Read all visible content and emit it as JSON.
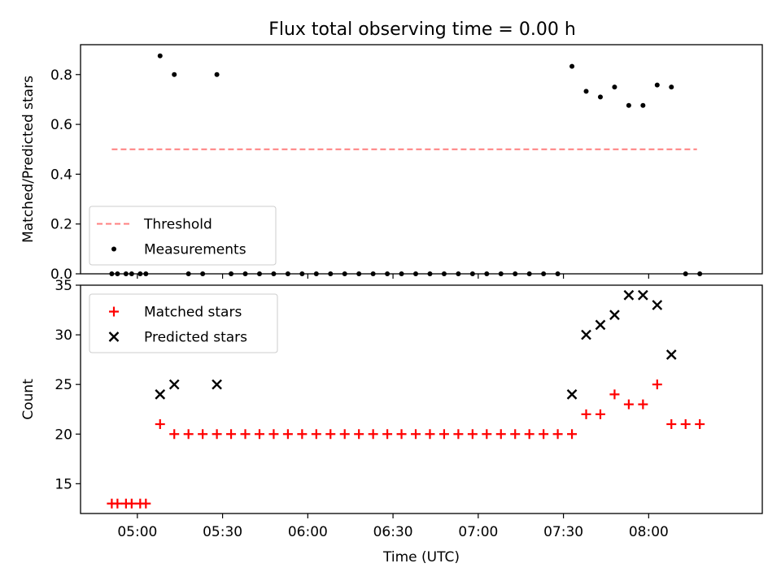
{
  "title": "Flux total observing time = 0.00 h",
  "chart_data": [
    {
      "type": "scatter",
      "ylabel": "Matched/Predicted stars",
      "xlabel": "",
      "ylim": [
        0.0,
        0.92
      ],
      "yticks": [
        0.0,
        0.2,
        0.4,
        0.6,
        0.8
      ],
      "ytick_labels": [
        "0.0",
        "0.2",
        "0.4",
        "0.6",
        "0.8"
      ],
      "xlim": [
        "04:40",
        "08:40"
      ],
      "xticks": [
        "05:00",
        "05:30",
        "06:00",
        "06:30",
        "07:00",
        "07:30",
        "08:00"
      ],
      "show_xtick_labels": false,
      "legend_location": "lower-left",
      "series": [
        {
          "name": "Threshold",
          "kind": "dashed-line",
          "color": "#ff7f7f",
          "points": [
            [
              "04:51",
              0.5
            ],
            [
              "08:17",
              0.5
            ]
          ]
        },
        {
          "name": "Measurements",
          "kind": "dot",
          "color": "#000000",
          "points": [
            [
              "04:51",
              0.0
            ],
            [
              "04:53",
              0.0
            ],
            [
              "04:56",
              0.0
            ],
            [
              "04:58",
              0.0
            ],
            [
              "05:01",
              0.0
            ],
            [
              "05:03",
              0.0
            ],
            [
              "05:08",
              0.875
            ],
            [
              "05:13",
              0.8
            ],
            [
              "05:18",
              0.0
            ],
            [
              "05:23",
              0.0
            ],
            [
              "05:28",
              0.8
            ],
            [
              "05:33",
              0.0
            ],
            [
              "05:38",
              0.0
            ],
            [
              "05:43",
              0.0
            ],
            [
              "05:48",
              0.0
            ],
            [
              "05:53",
              0.0
            ],
            [
              "05:58",
              0.0
            ],
            [
              "06:03",
              0.0
            ],
            [
              "06:08",
              0.0
            ],
            [
              "06:13",
              0.0
            ],
            [
              "06:18",
              0.0
            ],
            [
              "06:23",
              0.0
            ],
            [
              "06:28",
              0.0
            ],
            [
              "06:33",
              0.0
            ],
            [
              "06:38",
              0.0
            ],
            [
              "06:43",
              0.0
            ],
            [
              "06:48",
              0.0
            ],
            [
              "06:53",
              0.0
            ],
            [
              "06:58",
              0.0
            ],
            [
              "07:03",
              0.0
            ],
            [
              "07:08",
              0.0
            ],
            [
              "07:13",
              0.0
            ],
            [
              "07:18",
              0.0
            ],
            [
              "07:23",
              0.0
            ],
            [
              "07:28",
              0.0
            ],
            [
              "07:33",
              0.833
            ],
            [
              "07:38",
              0.733
            ],
            [
              "07:43",
              0.71
            ],
            [
              "07:48",
              0.75
            ],
            [
              "07:53",
              0.676
            ],
            [
              "07:58",
              0.676
            ],
            [
              "08:03",
              0.758
            ],
            [
              "08:08",
              0.75
            ],
            [
              "08:13",
              0.0
            ],
            [
              "08:18",
              0.0
            ]
          ]
        }
      ]
    },
    {
      "type": "scatter",
      "ylabel": "Count",
      "xlabel": "Time (UTC)",
      "ylim": [
        12,
        35
      ],
      "yticks": [
        15,
        20,
        25,
        30,
        35
      ],
      "ytick_labels": [
        "15",
        "20",
        "25",
        "30",
        "35"
      ],
      "xlim": [
        "04:40",
        "08:40"
      ],
      "xticks": [
        "05:00",
        "05:30",
        "06:00",
        "06:30",
        "07:00",
        "07:30",
        "08:00"
      ],
      "xtick_labels": [
        "05:00",
        "05:30",
        "06:00",
        "06:30",
        "07:00",
        "07:30",
        "08:00"
      ],
      "legend_location": "upper-left",
      "series": [
        {
          "name": "Matched stars",
          "kind": "plus",
          "color": "#ff0000",
          "points": [
            [
              "04:51",
              13
            ],
            [
              "04:53",
              13
            ],
            [
              "04:56",
              13
            ],
            [
              "04:58",
              13
            ],
            [
              "05:01",
              13
            ],
            [
              "05:03",
              13
            ],
            [
              "05:08",
              21
            ],
            [
              "05:13",
              20
            ],
            [
              "05:18",
              20
            ],
            [
              "05:23",
              20
            ],
            [
              "05:28",
              20
            ],
            [
              "05:33",
              20
            ],
            [
              "05:38",
              20
            ],
            [
              "05:43",
              20
            ],
            [
              "05:48",
              20
            ],
            [
              "05:53",
              20
            ],
            [
              "05:58",
              20
            ],
            [
              "06:03",
              20
            ],
            [
              "06:08",
              20
            ],
            [
              "06:13",
              20
            ],
            [
              "06:18",
              20
            ],
            [
              "06:23",
              20
            ],
            [
              "06:28",
              20
            ],
            [
              "06:33",
              20
            ],
            [
              "06:38",
              20
            ],
            [
              "06:43",
              20
            ],
            [
              "06:48",
              20
            ],
            [
              "06:53",
              20
            ],
            [
              "06:58",
              20
            ],
            [
              "07:03",
              20
            ],
            [
              "07:08",
              20
            ],
            [
              "07:13",
              20
            ],
            [
              "07:18",
              20
            ],
            [
              "07:23",
              20
            ],
            [
              "07:28",
              20
            ],
            [
              "07:33",
              20
            ],
            [
              "07:38",
              22
            ],
            [
              "07:43",
              22
            ],
            [
              "07:48",
              24
            ],
            [
              "07:53",
              23
            ],
            [
              "07:58",
              23
            ],
            [
              "08:03",
              25
            ],
            [
              "08:08",
              21
            ],
            [
              "08:13",
              21
            ],
            [
              "08:18",
              21
            ]
          ]
        },
        {
          "name": "Predicted stars",
          "kind": "x",
          "color": "#000000",
          "points": [
            [
              "05:08",
              24
            ],
            [
              "05:13",
              25
            ],
            [
              "05:28",
              25
            ],
            [
              "07:33",
              24
            ],
            [
              "07:38",
              30
            ],
            [
              "07:43",
              31
            ],
            [
              "07:48",
              32
            ],
            [
              "07:53",
              34
            ],
            [
              "07:58",
              34
            ],
            [
              "08:03",
              33
            ],
            [
              "08:08",
              28
            ]
          ]
        }
      ]
    }
  ]
}
